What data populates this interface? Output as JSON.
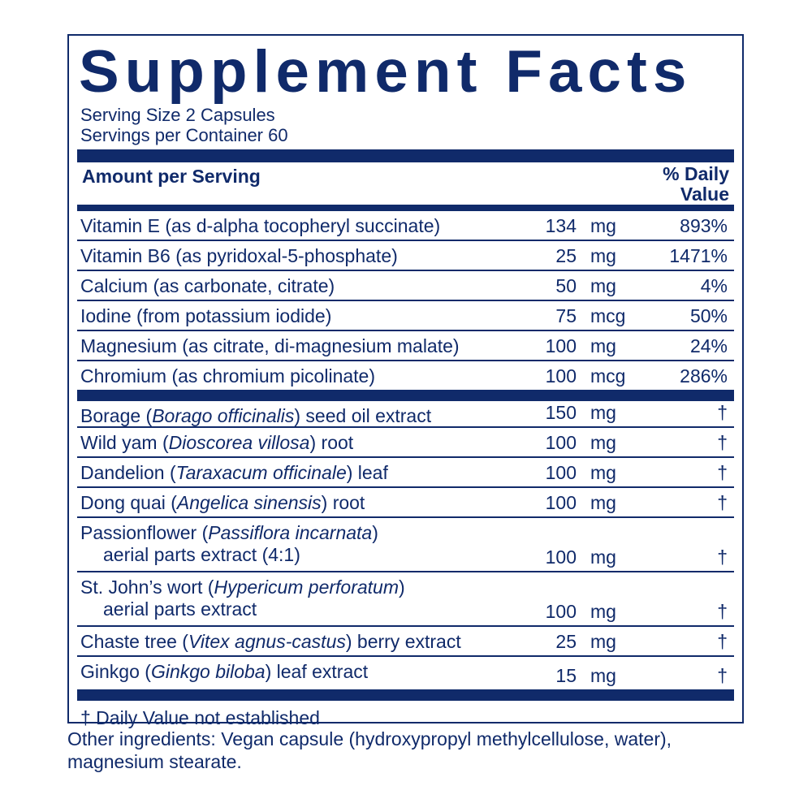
{
  "title": "Supplement Facts",
  "serving_size": "Serving Size  2 Capsules",
  "servings_per_container": "Servings per Container 60",
  "header": {
    "amount_per_serving": "Amount per Serving",
    "daily_value_1": "% Daily",
    "daily_value_2": "Value"
  },
  "nutrients": [
    {
      "name": "Vitamin E (as d-alpha tocopheryl succinate)",
      "amount": "134",
      "unit": "mg",
      "dv": "893%"
    },
    {
      "name": "Vitamin B6 (as pyridoxal-5-phosphate)",
      "amount": "25",
      "unit": "mg",
      "dv": "1471%"
    },
    {
      "name": "Calcium (as carbonate, citrate)",
      "amount": "50",
      "unit": "mg",
      "dv": "4%"
    },
    {
      "name": "Iodine (from potassium iodide)",
      "amount": "75",
      "unit": "mcg",
      "dv": "50%"
    },
    {
      "name": "Magnesium (as citrate, di-magnesium malate)",
      "amount": "100",
      "unit": "mg",
      "dv": "24%"
    },
    {
      "name": "Chromium (as chromium picolinate)",
      "amount": "100",
      "unit": "mcg",
      "dv": "286%"
    }
  ],
  "botanicals": [
    {
      "pre": "Borage (",
      "latin": "Borago officinalis",
      "post": ") seed oil extract",
      "line2": "",
      "amount": "150",
      "unit": "mg",
      "dv": "†"
    },
    {
      "pre": "Wild yam (",
      "latin": "Dioscorea villosa",
      "post": ") root",
      "line2": "",
      "amount": "100",
      "unit": "mg",
      "dv": "†"
    },
    {
      "pre": "Dandelion (",
      "latin": "Taraxacum officinale",
      "post": ") leaf",
      "line2": "",
      "amount": "100",
      "unit": "mg",
      "dv": "†"
    },
    {
      "pre": "Dong quai (",
      "latin": "Angelica sinensis",
      "post": ") root",
      "line2": "",
      "amount": "100",
      "unit": "mg",
      "dv": "†"
    },
    {
      "pre": "Passionflower (",
      "latin": "Passiflora incarnata",
      "post": ")",
      "line2": "aerial parts extract (4:1)",
      "amount": "100",
      "unit": "mg",
      "dv": "†"
    },
    {
      "pre": "St. John’s wort (",
      "latin": "Hypericum perforatum",
      "post": ")",
      "line2": "aerial parts extract",
      "amount": "100",
      "unit": "mg",
      "dv": "†"
    },
    {
      "pre": "Chaste tree (",
      "latin": "Vitex agnus-castus",
      "post": ") berry extract",
      "line2": "",
      "amount": "25",
      "unit": "mg",
      "dv": "†"
    },
    {
      "pre": "Ginkgo (",
      "latin": "Ginkgo biloba",
      "post": ") leaf extract",
      "line2": "",
      "amount": "15",
      "unit": "mg",
      "dv": "†"
    }
  ],
  "footnote": "†  Daily Value not established",
  "other_ingredients": "Other ingredients: Vegan capsule (hydroxypropyl methylcellulose, water), magnesium stearate.",
  "colors": {
    "ink": "#102a6a"
  }
}
